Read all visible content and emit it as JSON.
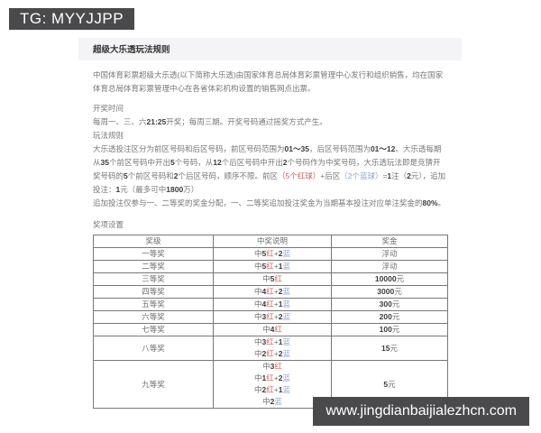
{
  "overlays": {
    "tg_banner": "TG: MYYJJPP",
    "site_banner": "www.jingdianbaijialezhcn.com"
  },
  "colors": {
    "banner_bg": "#4a4a4c",
    "title_bar_bg": "#f4f4f6",
    "red_ball": "#c9605f",
    "blue_ball": "#8ba3cc"
  },
  "page": {
    "title": "超级大乐透玩法规则",
    "intro": "中国体育彩票超级大乐透(以下简称大乐透)由国家体育总局体育彩票管理中心发行和组织销售，均在国家体育总局体育彩票管理中心在各省体彩机构设置的销售网点出票。",
    "draw_time": {
      "heading": "开奖时间",
      "segments": [
        {
          "t": "每周一、三、六",
          "s": "n"
        },
        {
          "t": "21:25",
          "s": "s"
        },
        {
          "t": "开奖；每周三期。开奖号码通过摇奖方式产生。",
          "s": "n"
        }
      ]
    },
    "rules": {
      "heading": "玩法规则",
      "segments": [
        {
          "t": "大乐透投注区分为前区号码和后区号码，前区号码范围为",
          "s": "n"
        },
        {
          "t": "01～35",
          "s": "s"
        },
        {
          "t": "，后区号码范围为",
          "s": "n"
        },
        {
          "t": "01～12",
          "s": "s"
        },
        {
          "t": "。大乐透每期从",
          "s": "n"
        },
        {
          "t": "35",
          "s": "s"
        },
        {
          "t": "个前区号码中开出",
          "s": "n"
        },
        {
          "t": "5",
          "s": "s"
        },
        {
          "t": "个号码，从",
          "s": "n"
        },
        {
          "t": "12",
          "s": "s"
        },
        {
          "t": "个后区号码中开出",
          "s": "n"
        },
        {
          "t": "2",
          "s": "s"
        },
        {
          "t": "个号码作为中奖号码，大乐透玩法即是竞猜开奖号码的",
          "s": "n"
        },
        {
          "t": "5",
          "s": "s"
        },
        {
          "t": "个前区号码和",
          "s": "n"
        },
        {
          "t": "2",
          "s": "s"
        },
        {
          "t": "个后区号码，顺序不限。前区",
          "s": "n"
        },
        {
          "t": "（5个红球）",
          "s": "r"
        },
        {
          "t": "+后区",
          "s": "n"
        },
        {
          "t": "（2个蓝球）",
          "s": "bl"
        },
        {
          "t": "=",
          "s": "n"
        },
        {
          "t": "1",
          "s": "s"
        },
        {
          "t": "注（",
          "s": "n"
        },
        {
          "t": "2",
          "s": "s"
        },
        {
          "t": "元），追加投注：",
          "s": "n"
        },
        {
          "t": "1",
          "s": "s"
        },
        {
          "t": "元（最多可中",
          "s": "n"
        },
        {
          "t": "1800",
          "s": "s"
        },
        {
          "t": "万）",
          "s": "n"
        }
      ],
      "extra_segments": [
        {
          "t": "追加投注仅参与一、二等奖的奖金分配，一、二等奖追加投注奖金为当期基本投注对应单注奖金的",
          "s": "n"
        },
        {
          "t": "80%",
          "s": "s"
        },
        {
          "t": "。",
          "s": "n"
        }
      ]
    },
    "prizes": {
      "heading": "奖项设置",
      "table": {
        "headers": [
          "奖级",
          "中奖说明",
          "奖金"
        ],
        "rows": [
          {
            "level": "一等奖",
            "desc": [
              "中5红+2蓝"
            ],
            "prize": "浮动"
          },
          {
            "level": "二等奖",
            "desc": [
              "中5红+1蓝"
            ],
            "prize": "浮动"
          },
          {
            "level": "三等奖",
            "desc": [
              "中5红"
            ],
            "prize": "10000元"
          },
          {
            "level": "四等奖",
            "desc": [
              "中4红+2蓝"
            ],
            "prize": "3000元"
          },
          {
            "level": "五等奖",
            "desc": [
              "中4红+1蓝"
            ],
            "prize": "300元"
          },
          {
            "level": "六等奖",
            "desc": [
              "中3红+2蓝"
            ],
            "prize": "200元"
          },
          {
            "level": "七等奖",
            "desc": [
              "中4红"
            ],
            "prize": "100元"
          },
          {
            "level": "八等奖",
            "desc": [
              "中3红+1蓝",
              "中2红+2蓝"
            ],
            "prize": "15元"
          },
          {
            "level": "九等奖",
            "desc": [
              "中3红",
              "中1红+2蓝",
              "中2红+1蓝",
              "中2蓝"
            ],
            "prize": "5元"
          }
        ]
      }
    }
  }
}
